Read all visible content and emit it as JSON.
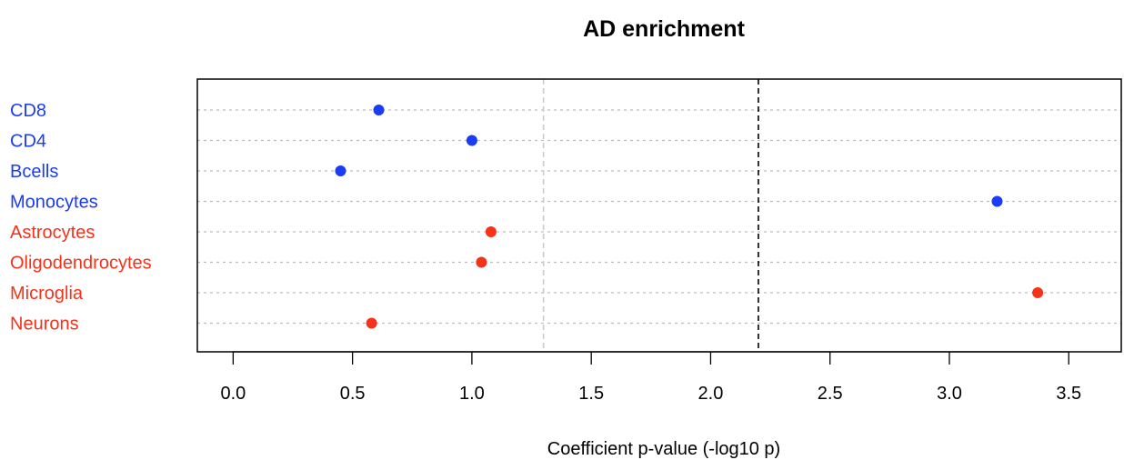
{
  "chart_data": {
    "type": "scatter",
    "title": "AD enrichment",
    "xlabel": "Coefficient p-value (-log10 p)",
    "ylabel": "",
    "xlim": [
      -0.15,
      3.72
    ],
    "xticks": [
      0.0,
      0.5,
      1.0,
      1.5,
      2.0,
      2.5,
      3.0,
      3.5
    ],
    "xtick_labels": [
      "0.0",
      "0.5",
      "1.0",
      "1.5",
      "2.0",
      "2.5",
      "3.0",
      "3.5"
    ],
    "grid": "horizontal dotted lines per category",
    "reference_lines": [
      {
        "x": 1.3,
        "style": "dashed",
        "color": "#cccccc"
      },
      {
        "x": 2.2,
        "style": "dashed",
        "color": "#000000"
      }
    ],
    "categories": [
      "CD8",
      "CD4",
      "Bcells",
      "Monocytes",
      "Astrocytes",
      "Oligodendrocytes",
      "Microglia",
      "Neurons"
    ],
    "values": [
      0.61,
      1.0,
      0.45,
      3.2,
      1.08,
      1.04,
      3.37,
      0.58
    ],
    "colors": [
      "#1a3cf5",
      "#1a3cf5",
      "#1a3cf5",
      "#1a3cf5",
      "#f5321a",
      "#f5321a",
      "#f5321a",
      "#f5321a"
    ]
  }
}
